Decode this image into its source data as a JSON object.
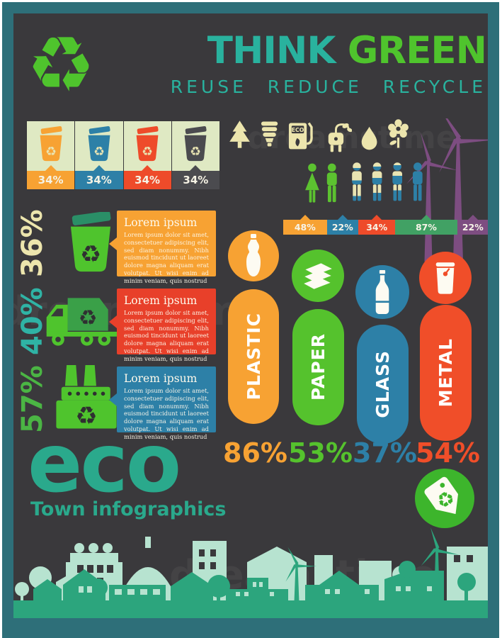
{
  "page": {
    "margin_color": "#ffffff",
    "frame_color": "#2e6f79",
    "content_bg": "#3a393c"
  },
  "header": {
    "logo_icon": "recycle-icon",
    "logo_color": "#4fc42d",
    "title_think": "THINK",
    "title_green": "GREEN",
    "think_color": "#29b29e",
    "green_color": "#4fc42d",
    "subtitle": "REUSE REDUCE RECYCLE"
  },
  "bin_chart": {
    "panel_bg": "#dfe9c3",
    "items": [
      {
        "icon": "recycle-bin-icon",
        "value": "34%",
        "color": "#f7a233"
      },
      {
        "icon": "recycle-bin-icon",
        "value": "34%",
        "color": "#2d80a7"
      },
      {
        "icon": "recycle-bin-icon",
        "value": "34%",
        "color": "#ee4b2a"
      },
      {
        "icon": "recycle-bin-icon",
        "value": "34%",
        "color": "#4b4b4f"
      }
    ]
  },
  "eco_icons": {
    "color": "#ece5ad",
    "pump_label": "ECO",
    "names": [
      "pine-tree-icon",
      "cfl-bulb-icon",
      "eco-fuel-pump-icon",
      "green-plug-icon",
      "water-drop-icon",
      "flower-icon"
    ]
  },
  "wind_turbines": {
    "color": "#7d4d81",
    "count": 2
  },
  "people": {
    "couple_color": "#5cc230",
    "figure_base_color": "#e9e4b2",
    "figure_fill_color": "#2d80a7",
    "fill_levels_percent": [
      30,
      50,
      65,
      100
    ]
  },
  "stacked_bar": {
    "segments": [
      {
        "label": "48%",
        "value": 48,
        "color": "#f7a233"
      },
      {
        "label": "22%",
        "value": 22,
        "color": "#2d80a7"
      },
      {
        "label": "34%",
        "value": 34,
        "color": "#ee4b2a"
      },
      {
        "label": "87%",
        "value": 87,
        "color": "#41a164"
      },
      {
        "label": "22%",
        "value": 22,
        "color": "#7d4d81"
      }
    ]
  },
  "stats": [
    {
      "value": "36%",
      "value_color": "#ece5ad",
      "icon": "recycle-bin-icon",
      "box_color": "#f7a233",
      "heading": "Lorem ipsum",
      "body": "Lorem ipsum dolor sit amet, consectetuer adipiscing elit, sed diam nonummy. Nibh euismod tincidunt ut laoreet dolore magna aliquam erat volutpat. Ut wisi enim ad minim veniam, quis nostrud"
    },
    {
      "value": "40%",
      "value_color": "#2fb3a5",
      "icon": "recycle-truck-icon",
      "box_color": "#e8402a",
      "heading": "Lorem ipsum",
      "body": "Lorem ipsum dolor sit amet, consectetuer adipiscing elit, sed diam nonummy. Nibh euismod tincidunt ut laoreet dolore magna aliquam erat volutpat. Ut wisi enim ad minim veniam, quis nostrud"
    },
    {
      "value": "57%",
      "value_color": "#4bb544",
      "icon": "recycle-factory-icon",
      "box_color": "#2d80a7",
      "heading": "Lorem ipsum",
      "body": "Lorem ipsum dolor sit amet, consectetuer adipiscing elit, sed diam nonummy. Nibh euismod tincidunt ut laoreet dolore magna aliquam erat volutpat. Ut wisi enim ad minim veniam, quis nostrud"
    }
  ],
  "materials": [
    {
      "label": "PLASTIC",
      "pct": "86%",
      "value": 86,
      "color": "#f7a233",
      "icon": "plastic-bottle-icon"
    },
    {
      "label": "PAPER",
      "pct": "53%",
      "value": 53,
      "color": "#55c22d",
      "icon": "paper-stack-icon"
    },
    {
      "label": "GLASS",
      "pct": "37%",
      "value": 37,
      "color": "#2d80a7",
      "icon": "glass-bottle-icon"
    },
    {
      "label": "METAL",
      "pct": "54%",
      "value": 54,
      "color": "#f04e29",
      "icon": "metal-can-icon"
    }
  ],
  "brand": {
    "title": "eco",
    "subtitle": "Town infographics",
    "color": "#2aa98c"
  },
  "badge": {
    "icon": "recycle-tag-icon",
    "color": "#3db52c"
  },
  "cityscape": {
    "back_color": "#b7e3d0",
    "front_color": "#2ca57d",
    "band_color": "#2e6f79"
  },
  "watermark": {
    "text": "dreamstime"
  },
  "chart_data": [
    {
      "type": "bar",
      "title": "Waste sorting bins",
      "categories": [
        "orange bin",
        "blue bin",
        "red bin",
        "black bin"
      ],
      "values": [
        34,
        34,
        34,
        34
      ],
      "unit": "%"
    },
    {
      "type": "bar",
      "orientation": "horizontal-stacked",
      "title": "Population share bar",
      "categories": [
        "orange",
        "blue",
        "red",
        "green",
        "purple"
      ],
      "values": [
        48,
        22,
        34,
        87,
        22
      ],
      "unit": "%"
    },
    {
      "type": "bar",
      "title": "Recycled materials",
      "categories": [
        "PLASTIC",
        "PAPER",
        "GLASS",
        "METAL"
      ],
      "values": [
        86,
        53,
        37,
        54
      ],
      "unit": "%",
      "legend_position": "none"
    },
    {
      "type": "bar",
      "title": "Side stats",
      "categories": [
        "recycle bin",
        "recycle truck",
        "recycling plant"
      ],
      "values": [
        36,
        40,
        57
      ],
      "unit": "%"
    }
  ]
}
